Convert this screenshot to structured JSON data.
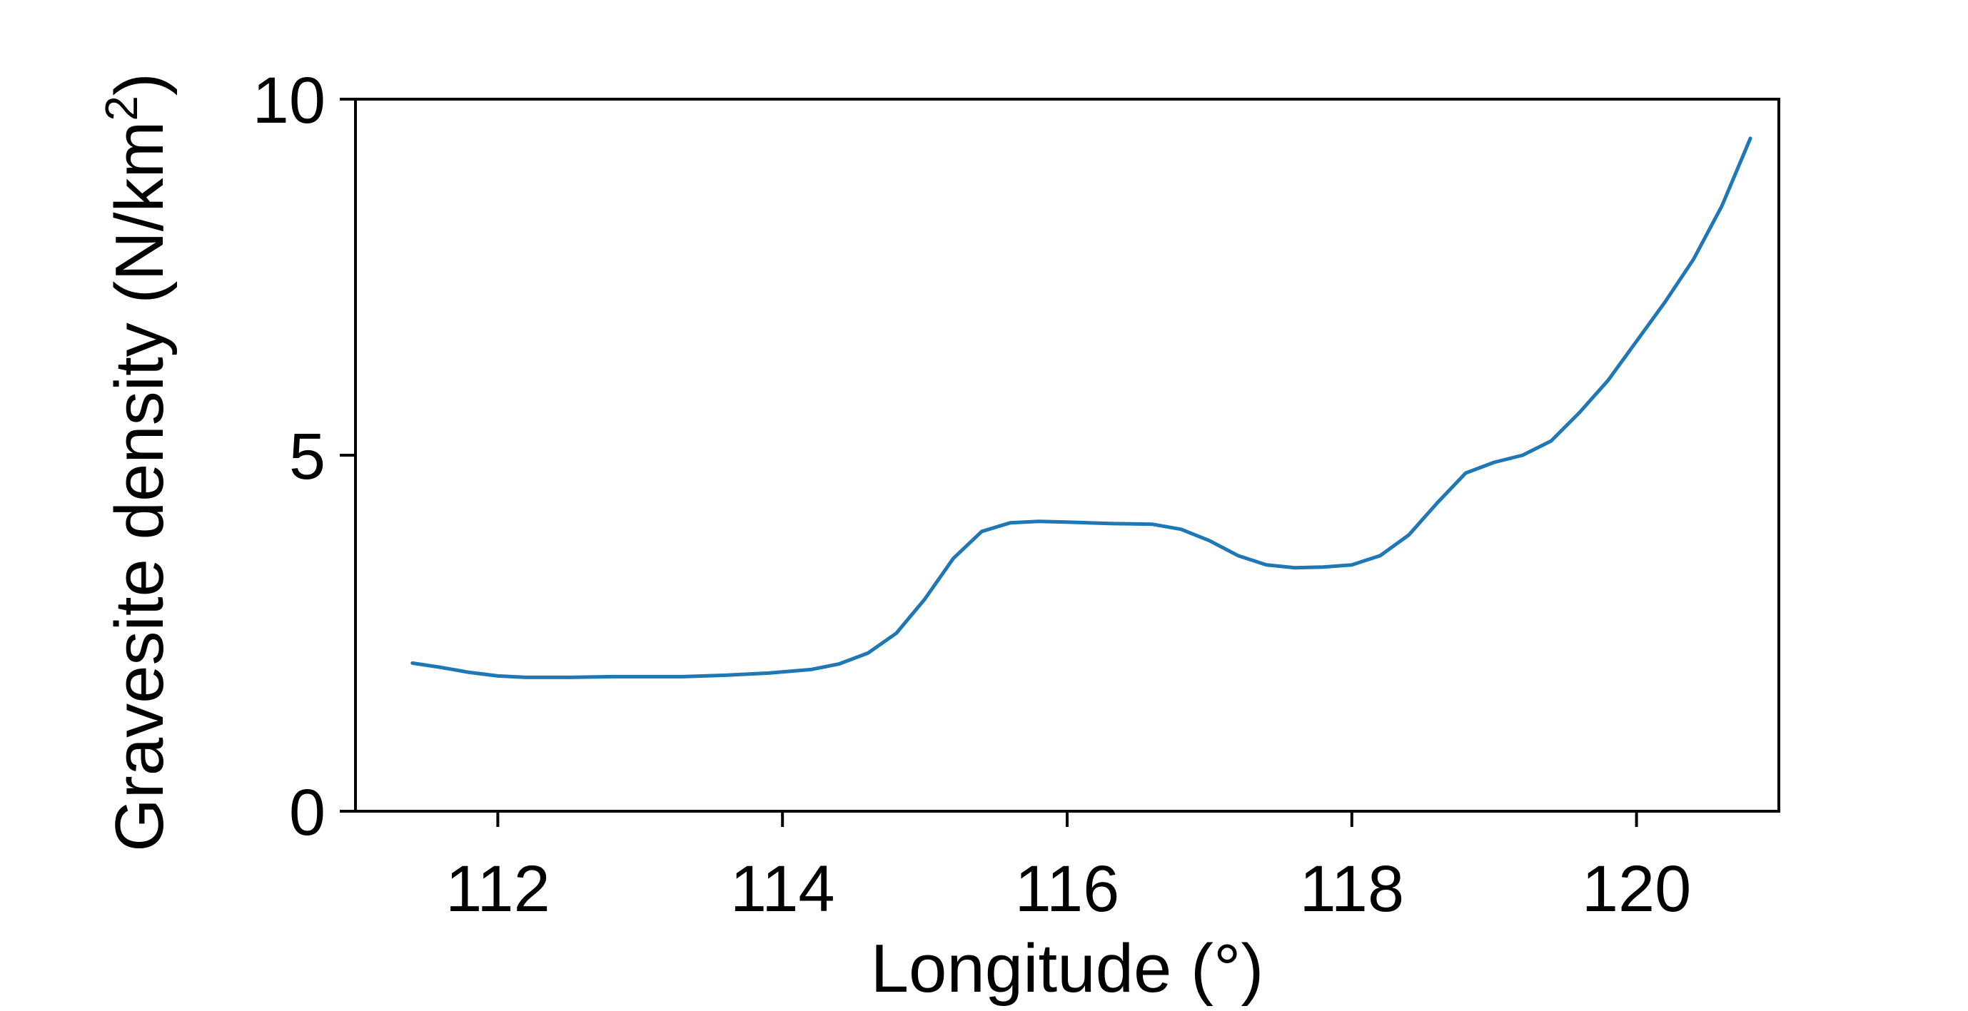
{
  "chart_data": {
    "type": "line",
    "xlabel": "Longitude (°)",
    "ylabel_main": "Gravesite density (N/km",
    "ylabel_sup": "2",
    "ylabel_close": ")",
    "xlim": [
      111.0,
      121.0
    ],
    "ylim": [
      0,
      10
    ],
    "xticks": [
      112,
      114,
      116,
      118,
      120
    ],
    "yticks": [
      0,
      5,
      10
    ],
    "xtick_labels": [
      "112",
      "114",
      "116",
      "118",
      "120"
    ],
    "ytick_labels": [
      "0",
      "5",
      "10"
    ],
    "grid": false,
    "series": [
      {
        "color": "#1f77b4",
        "x": [
          111.4,
          111.6,
          111.8,
          112.0,
          112.2,
          112.5,
          112.8,
          113.0,
          113.3,
          113.6,
          113.9,
          114.2,
          114.4,
          114.6,
          114.8,
          115.0,
          115.2,
          115.4,
          115.6,
          115.8,
          116.0,
          116.3,
          116.6,
          116.8,
          117.0,
          117.2,
          117.4,
          117.6,
          117.8,
          118.0,
          118.2,
          118.4,
          118.6,
          118.8,
          119.0,
          119.2,
          119.4,
          119.6,
          119.8,
          120.0,
          120.2,
          120.4,
          120.6,
          120.8
        ],
        "y": [
          2.08,
          2.02,
          1.95,
          1.9,
          1.88,
          1.88,
          1.89,
          1.89,
          1.89,
          1.91,
          1.94,
          1.99,
          2.07,
          2.22,
          2.5,
          2.98,
          3.55,
          3.93,
          4.05,
          4.07,
          4.06,
          4.04,
          4.03,
          3.96,
          3.8,
          3.59,
          3.46,
          3.42,
          3.43,
          3.46,
          3.59,
          3.88,
          4.33,
          4.75,
          4.9,
          5.0,
          5.2,
          5.6,
          6.05,
          6.6,
          7.15,
          7.75,
          8.5,
          9.45
        ]
      }
    ]
  }
}
